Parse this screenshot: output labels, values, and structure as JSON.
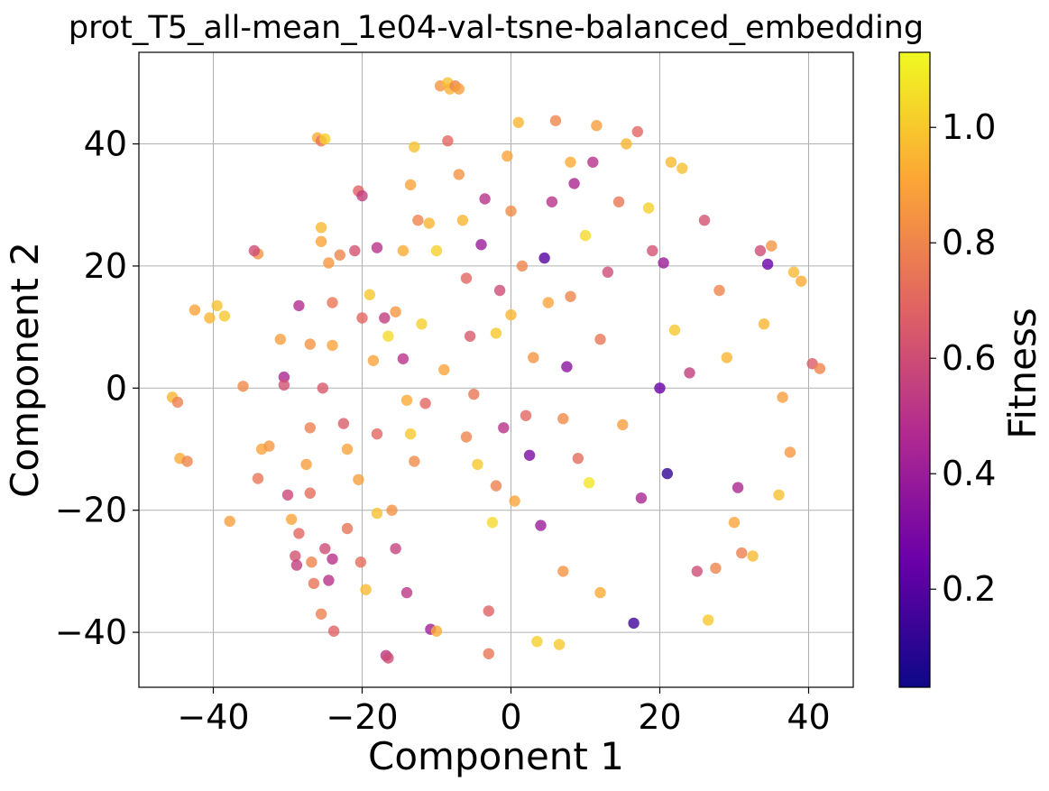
{
  "chart_data": {
    "type": "scatter",
    "title": "prot_T5_all-mean_1e04-val-tsne-balanced_embedding",
    "xlabel": "Component 1",
    "ylabel": "Component 2",
    "xlim": [
      -50,
      46
    ],
    "ylim": [
      -49,
      55
    ],
    "xticks": [
      -40,
      -20,
      0,
      20,
      40
    ],
    "yticks": [
      -40,
      -20,
      0,
      20,
      40
    ],
    "xtick_labels": [
      "−40",
      "−20",
      "0",
      "20",
      "40"
    ],
    "ytick_labels": [
      "−40",
      "−20",
      "0",
      "20",
      "40"
    ],
    "grid": true,
    "colorbar": {
      "label": "Fitness",
      "range": [
        0.03,
        1.13
      ],
      "ticks": [
        0.2,
        0.4,
        0.6,
        0.8,
        1.0
      ],
      "tick_labels": [
        "0.2",
        "0.4",
        "0.6",
        "0.8",
        "1.0"
      ],
      "colormap": "plasma",
      "stops": [
        "#0d0887",
        "#6a00a8",
        "#b12a90",
        "#e16462",
        "#fca636",
        "#f0f921"
      ]
    },
    "point_alpha": 0.8,
    "points": [
      {
        "x": -45.5,
        "y": -1.5,
        "c": 0.95
      },
      {
        "x": -44.8,
        "y": -2.3,
        "c": 0.78
      },
      {
        "x": -44.5,
        "y": -11.5,
        "c": 0.92
      },
      {
        "x": -43.5,
        "y": -12.0,
        "c": 0.8
      },
      {
        "x": -42.5,
        "y": 12.8,
        "c": 0.9
      },
      {
        "x": -40.5,
        "y": 11.5,
        "c": 0.95
      },
      {
        "x": -39.5,
        "y": 13.5,
        "c": 0.98
      },
      {
        "x": -38.5,
        "y": 11.8,
        "c": 1.0
      },
      {
        "x": -37.8,
        "y": -21.8,
        "c": 0.88
      },
      {
        "x": -36.0,
        "y": 0.3,
        "c": 0.82
      },
      {
        "x": -34.0,
        "y": 22.0,
        "c": 0.85
      },
      {
        "x": -34.5,
        "y": 22.5,
        "c": 0.6
      },
      {
        "x": -33.5,
        "y": -10.0,
        "c": 0.9
      },
      {
        "x": -34.0,
        "y": -14.8,
        "c": 0.75
      },
      {
        "x": -32.5,
        "y": -9.5,
        "c": 0.86
      },
      {
        "x": -31.0,
        "y": 8.0,
        "c": 0.88
      },
      {
        "x": -30.5,
        "y": 1.8,
        "c": 0.45
      },
      {
        "x": -30.5,
        "y": 0.5,
        "c": 0.62
      },
      {
        "x": -30.0,
        "y": -17.5,
        "c": 0.58
      },
      {
        "x": -29.5,
        "y": -21.5,
        "c": 0.9
      },
      {
        "x": -28.5,
        "y": 13.5,
        "c": 0.48
      },
      {
        "x": -29.0,
        "y": -27.5,
        "c": 0.62
      },
      {
        "x": -28.8,
        "y": -29.0,
        "c": 0.55
      },
      {
        "x": -28.5,
        "y": -23.8,
        "c": 0.7
      },
      {
        "x": -27.5,
        "y": -12.5,
        "c": 0.88
      },
      {
        "x": -27.0,
        "y": 7.2,
        "c": 0.85
      },
      {
        "x": -27.0,
        "y": -6.5,
        "c": 0.78
      },
      {
        "x": -27.0,
        "y": -17.2,
        "c": 0.72
      },
      {
        "x": -26.8,
        "y": -28.5,
        "c": 0.8
      },
      {
        "x": -26.5,
        "y": -32.0,
        "c": 0.74
      },
      {
        "x": -26.0,
        "y": 41.0,
        "c": 0.92
      },
      {
        "x": -25.5,
        "y": 40.5,
        "c": 0.75
      },
      {
        "x": -25.0,
        "y": 40.8,
        "c": 1.02
      },
      {
        "x": -25.5,
        "y": 26.3,
        "c": 0.96
      },
      {
        "x": -25.5,
        "y": 24.0,
        "c": 0.9
      },
      {
        "x": -25.3,
        "y": 0.0,
        "c": 0.65
      },
      {
        "x": -25.0,
        "y": -26.3,
        "c": 0.6
      },
      {
        "x": -25.5,
        "y": -37.0,
        "c": 0.78
      },
      {
        "x": -24.5,
        "y": 20.5,
        "c": 0.86
      },
      {
        "x": -24.0,
        "y": 14.0,
        "c": 0.75
      },
      {
        "x": -24.0,
        "y": 7.0,
        "c": 0.9
      },
      {
        "x": -24.0,
        "y": -28.0,
        "c": 0.5
      },
      {
        "x": -24.5,
        "y": -31.5,
        "c": 0.5
      },
      {
        "x": -23.8,
        "y": -39.8,
        "c": 0.68
      },
      {
        "x": -23.0,
        "y": 21.8,
        "c": 0.8
      },
      {
        "x": -22.5,
        "y": -5.8,
        "c": 0.66
      },
      {
        "x": -22.0,
        "y": -10.0,
        "c": 0.9
      },
      {
        "x": -22.0,
        "y": -23.0,
        "c": 0.74
      },
      {
        "x": -21.0,
        "y": 22.5,
        "c": 0.62
      },
      {
        "x": -20.5,
        "y": 32.3,
        "c": 0.68
      },
      {
        "x": -20.0,
        "y": 31.5,
        "c": 0.55
      },
      {
        "x": -20.0,
        "y": 11.5,
        "c": 0.7
      },
      {
        "x": -20.5,
        "y": -15.0,
        "c": 0.88
      },
      {
        "x": -20.2,
        "y": -28.5,
        "c": 0.72
      },
      {
        "x": -19.5,
        "y": -33.0,
        "c": 0.96
      },
      {
        "x": -19.0,
        "y": 15.3,
        "c": 1.0
      },
      {
        "x": -18.5,
        "y": 4.5,
        "c": 0.9
      },
      {
        "x": -18.0,
        "y": 23.0,
        "c": 0.5
      },
      {
        "x": -18.0,
        "y": -7.5,
        "c": 0.7
      },
      {
        "x": -18.0,
        "y": -20.5,
        "c": 0.98
      },
      {
        "x": -17.0,
        "y": 11.5,
        "c": 0.55
      },
      {
        "x": -16.8,
        "y": -43.8,
        "c": 0.52
      },
      {
        "x": -16.5,
        "y": -44.2,
        "c": 0.6
      },
      {
        "x": -16.5,
        "y": 8.5,
        "c": 1.05
      },
      {
        "x": -16.0,
        "y": -20.0,
        "c": 0.84
      },
      {
        "x": -15.5,
        "y": -26.3,
        "c": 0.56
      },
      {
        "x": -15.5,
        "y": 12.5,
        "c": 0.86
      },
      {
        "x": -14.5,
        "y": 22.5,
        "c": 0.92
      },
      {
        "x": -14.5,
        "y": 4.8,
        "c": 0.5
      },
      {
        "x": -14.0,
        "y": -33.5,
        "c": 0.52
      },
      {
        "x": -13.5,
        "y": -7.5,
        "c": 1.0
      },
      {
        "x": -13.5,
        "y": 33.3,
        "c": 0.9
      },
      {
        "x": -13.0,
        "y": 39.5,
        "c": 0.98
      },
      {
        "x": -13.0,
        "y": -12.0,
        "c": 0.82
      },
      {
        "x": -12.5,
        "y": 27.5,
        "c": 0.8
      },
      {
        "x": -12.0,
        "y": 10.5,
        "c": 1.02
      },
      {
        "x": -11.5,
        "y": -2.5,
        "c": 0.7
      },
      {
        "x": -11.0,
        "y": 27.0,
        "c": 0.95
      },
      {
        "x": -10.8,
        "y": -39.5,
        "c": 0.42
      },
      {
        "x": -10.0,
        "y": -39.8,
        "c": 0.92
      },
      {
        "x": -10.0,
        "y": 22.5,
        "c": 1.02
      },
      {
        "x": -9.5,
        "y": 49.5,
        "c": 0.85
      },
      {
        "x": -8.5,
        "y": 50.0,
        "c": 0.98
      },
      {
        "x": -8.2,
        "y": 49.0,
        "c": 0.94
      },
      {
        "x": -7.5,
        "y": 49.5,
        "c": 0.8
      },
      {
        "x": -7.0,
        "y": 49.0,
        "c": 0.88
      },
      {
        "x": -8.5,
        "y": 40.5,
        "c": 0.7
      },
      {
        "x": -7.0,
        "y": 35.0,
        "c": 0.85
      },
      {
        "x": -6.5,
        "y": 27.5,
        "c": 0.95
      },
      {
        "x": -6.0,
        "y": 18.0,
        "c": 0.7
      },
      {
        "x": -5.5,
        "y": 8.5,
        "c": 0.65
      },
      {
        "x": -5.0,
        "y": -1.0,
        "c": 0.75
      },
      {
        "x": -4.5,
        "y": -12.5,
        "c": 1.0
      },
      {
        "x": -4.0,
        "y": 23.5,
        "c": 0.4
      },
      {
        "x": -3.5,
        "y": 31.0,
        "c": 0.5
      },
      {
        "x": -3.0,
        "y": -43.5,
        "c": 0.75
      },
      {
        "x": -3.0,
        "y": -36.5,
        "c": 0.68
      },
      {
        "x": -2.5,
        "y": -22.0,
        "c": 1.05
      },
      {
        "x": -2.0,
        "y": 9.0,
        "c": 1.0
      },
      {
        "x": -1.5,
        "y": 16.0,
        "c": 0.6
      },
      {
        "x": -1.0,
        "y": -6.5,
        "c": 0.5
      },
      {
        "x": -0.5,
        "y": 38.0,
        "c": 0.9
      },
      {
        "x": 0.0,
        "y": 29.0,
        "c": 0.82
      },
      {
        "x": 0.5,
        "y": -18.5,
        "c": 0.9
      },
      {
        "x": 1.0,
        "y": 43.5,
        "c": 0.95
      },
      {
        "x": 1.5,
        "y": 20.0,
        "c": 0.8
      },
      {
        "x": 2.0,
        "y": -4.5,
        "c": 0.7
      },
      {
        "x": 2.5,
        "y": -11.0,
        "c": 0.3
      },
      {
        "x": 3.5,
        "y": -41.5,
        "c": 1.02
      },
      {
        "x": 4.0,
        "y": -22.5,
        "c": 0.4
      },
      {
        "x": 4.5,
        "y": 21.3,
        "c": 0.2
      },
      {
        "x": 5.0,
        "y": 14.0,
        "c": 0.9
      },
      {
        "x": 5.5,
        "y": 30.5,
        "c": 0.5
      },
      {
        "x": 6.0,
        "y": 43.8,
        "c": 0.8
      },
      {
        "x": 6.5,
        "y": -42.0,
        "c": 1.0
      },
      {
        "x": 7.0,
        "y": -30.0,
        "c": 0.85
      },
      {
        "x": 7.5,
        "y": 3.5,
        "c": 0.35
      },
      {
        "x": 8.0,
        "y": 37.0,
        "c": 0.92
      },
      {
        "x": 8.5,
        "y": 33.5,
        "c": 0.45
      },
      {
        "x": 9.0,
        "y": -11.5,
        "c": 0.72
      },
      {
        "x": 10.0,
        "y": 25.0,
        "c": 1.05
      },
      {
        "x": 10.5,
        "y": -15.5,
        "c": 1.08
      },
      {
        "x": 11.0,
        "y": 37.0,
        "c": 0.5
      },
      {
        "x": 11.5,
        "y": 43.0,
        "c": 0.88
      },
      {
        "x": 12.0,
        "y": -33.5,
        "c": 0.92
      },
      {
        "x": 13.0,
        "y": 19.0,
        "c": 0.6
      },
      {
        "x": 14.5,
        "y": 30.5,
        "c": 0.75
      },
      {
        "x": 15.5,
        "y": 40.0,
        "c": 0.95
      },
      {
        "x": 16.5,
        "y": -38.5,
        "c": 0.15
      },
      {
        "x": 17.0,
        "y": 42.0,
        "c": 0.7
      },
      {
        "x": 17.5,
        "y": -18.0,
        "c": 0.45
      },
      {
        "x": 18.5,
        "y": 29.5,
        "c": 1.02
      },
      {
        "x": 19.0,
        "y": 22.5,
        "c": 0.62
      },
      {
        "x": 20.0,
        "y": 0.0,
        "c": 0.25
      },
      {
        "x": 20.5,
        "y": 20.5,
        "c": 0.4
      },
      {
        "x": 21.0,
        "y": -14.0,
        "c": 0.12
      },
      {
        "x": 21.5,
        "y": 37.0,
        "c": 0.96
      },
      {
        "x": 22.0,
        "y": 9.5,
        "c": 1.0
      },
      {
        "x": 23.0,
        "y": 36.0,
        "c": 0.98
      },
      {
        "x": 24.0,
        "y": 2.5,
        "c": 0.55
      },
      {
        "x": 25.0,
        "y": -30.0,
        "c": 0.6
      },
      {
        "x": 26.0,
        "y": 27.5,
        "c": 0.62
      },
      {
        "x": 26.5,
        "y": -38.0,
        "c": 1.0
      },
      {
        "x": 27.5,
        "y": -29.5,
        "c": 0.8
      },
      {
        "x": 28.0,
        "y": 16.0,
        "c": 0.8
      },
      {
        "x": 29.0,
        "y": 5.0,
        "c": 0.95
      },
      {
        "x": 30.0,
        "y": -22.0,
        "c": 0.9
      },
      {
        "x": 30.5,
        "y": -16.3,
        "c": 0.45
      },
      {
        "x": 31.0,
        "y": -27.0,
        "c": 0.78
      },
      {
        "x": 32.5,
        "y": -27.5,
        "c": 0.96
      },
      {
        "x": 33.5,
        "y": 22.5,
        "c": 0.6
      },
      {
        "x": 34.0,
        "y": 10.5,
        "c": 0.95
      },
      {
        "x": 34.5,
        "y": 20.3,
        "c": 0.25
      },
      {
        "x": 35.0,
        "y": 23.3,
        "c": 0.85
      },
      {
        "x": 36.0,
        "y": -17.5,
        "c": 0.98
      },
      {
        "x": 36.5,
        "y": -1.5,
        "c": 0.88
      },
      {
        "x": 37.5,
        "y": -10.5,
        "c": 0.86
      },
      {
        "x": 38.0,
        "y": 19.0,
        "c": 0.96
      },
      {
        "x": 39.0,
        "y": 17.5,
        "c": 0.92
      },
      {
        "x": 40.5,
        "y": 4.0,
        "c": 0.66
      },
      {
        "x": 41.5,
        "y": 3.2,
        "c": 0.8
      },
      {
        "x": -6.0,
        "y": -8.0,
        "c": 0.8
      },
      {
        "x": 3.0,
        "y": 5.0,
        "c": 0.85
      },
      {
        "x": -9.0,
        "y": 3.0,
        "c": 0.9
      },
      {
        "x": 7.0,
        "y": -5.0,
        "c": 0.82
      },
      {
        "x": -2.0,
        "y": -16.0,
        "c": 0.78
      },
      {
        "x": 12.0,
        "y": 8.0,
        "c": 0.75
      },
      {
        "x": -14.0,
        "y": -2.0,
        "c": 0.92
      },
      {
        "x": 15.0,
        "y": -6.0,
        "c": 0.88
      },
      {
        "x": 0.0,
        "y": 12.0,
        "c": 0.95
      },
      {
        "x": 8.0,
        "y": 15.0,
        "c": 0.8
      }
    ]
  }
}
